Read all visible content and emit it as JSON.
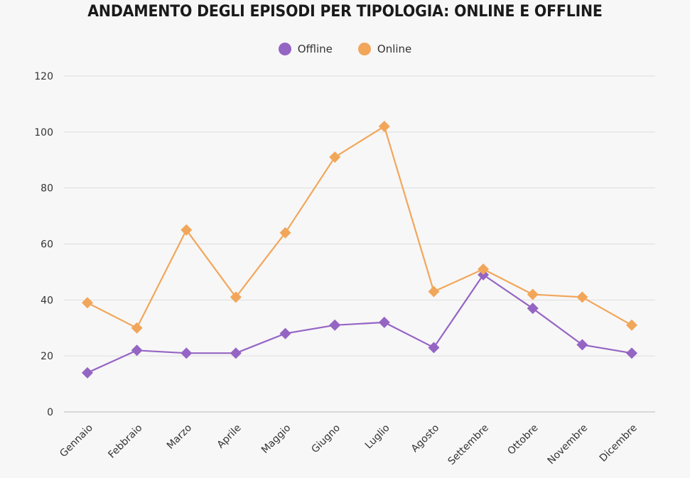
{
  "chart_data": {
    "type": "line",
    "title": "ANDAMENTO DEGLI EPISODI PER TIPOLOGIA: ONLINE E OFFLINE",
    "xlabel": "",
    "ylabel": "",
    "ylim": [
      0,
      120
    ],
    "yticks": [
      0,
      20,
      40,
      60,
      80,
      100,
      120
    ],
    "grid": true,
    "legend_position": "top-center",
    "categories": [
      "Gennaio",
      "Febbraio",
      "Marzo",
      "Aprile",
      "Maggio",
      "Giugno",
      "Luglio",
      "Agosto",
      "Settembre",
      "Ottobre",
      "Novembre",
      "Dicembre"
    ],
    "series": [
      {
        "name": "Offline",
        "color": "#9565c4",
        "marker": "diamond",
        "values": [
          14,
          22,
          21,
          21,
          28,
          31,
          32,
          23,
          49,
          37,
          24,
          21
        ]
      },
      {
        "name": "Online",
        "color": "#f2a65a",
        "marker": "diamond",
        "values": [
          39,
          30,
          65,
          41,
          64,
          91,
          102,
          43,
          51,
          42,
          41,
          31
        ]
      }
    ]
  }
}
